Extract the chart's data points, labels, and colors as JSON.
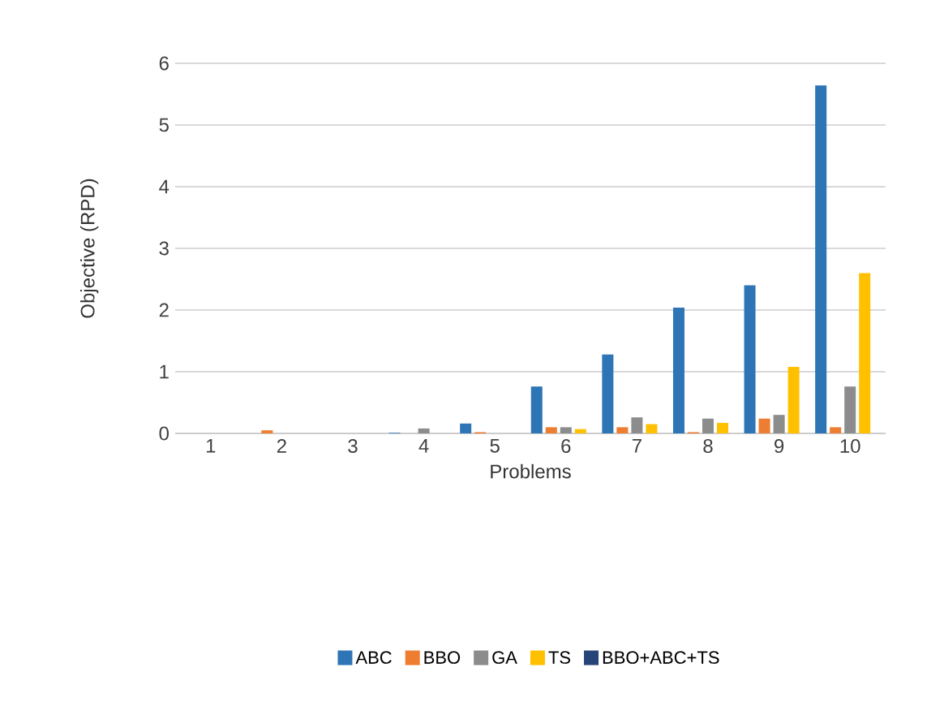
{
  "chart_data": {
    "type": "bar",
    "xlabel": "Problems",
    "ylabel": "Objective (RPD)",
    "categories": [
      "1",
      "2",
      "3",
      "4",
      "5",
      "6",
      "7",
      "8",
      "9",
      "10"
    ],
    "series": [
      {
        "name": "ABC",
        "color": "#2e75b6",
        "values": [
          0,
          0,
          0,
          0.01,
          0.16,
          0.76,
          1.28,
          2.04,
          2.4,
          5.64
        ]
      },
      {
        "name": "BBO",
        "color": "#ed7d31",
        "values": [
          0,
          0.05,
          0,
          0,
          0.02,
          0.1,
          0.1,
          0.02,
          0.24,
          0.1
        ]
      },
      {
        "name": "GA",
        "color": "#8c8c8c",
        "values": [
          0,
          0,
          0,
          0.08,
          0,
          0.1,
          0.26,
          0.24,
          0.3,
          0.76
        ]
      },
      {
        "name": "TS",
        "color": "#ffc000",
        "values": [
          0,
          0,
          0,
          0,
          0,
          0.07,
          0.15,
          0.17,
          1.08,
          2.6
        ]
      },
      {
        "name": "BBO+ABC+TS",
        "color": "#264478",
        "values": [
          0,
          0,
          0,
          0,
          0,
          0,
          0,
          0,
          0,
          0
        ]
      }
    ],
    "ylim": [
      0,
      6
    ],
    "yticks": [
      0,
      1,
      2,
      3,
      4,
      5,
      6
    ],
    "grid": "y",
    "legend": "bottom"
  }
}
